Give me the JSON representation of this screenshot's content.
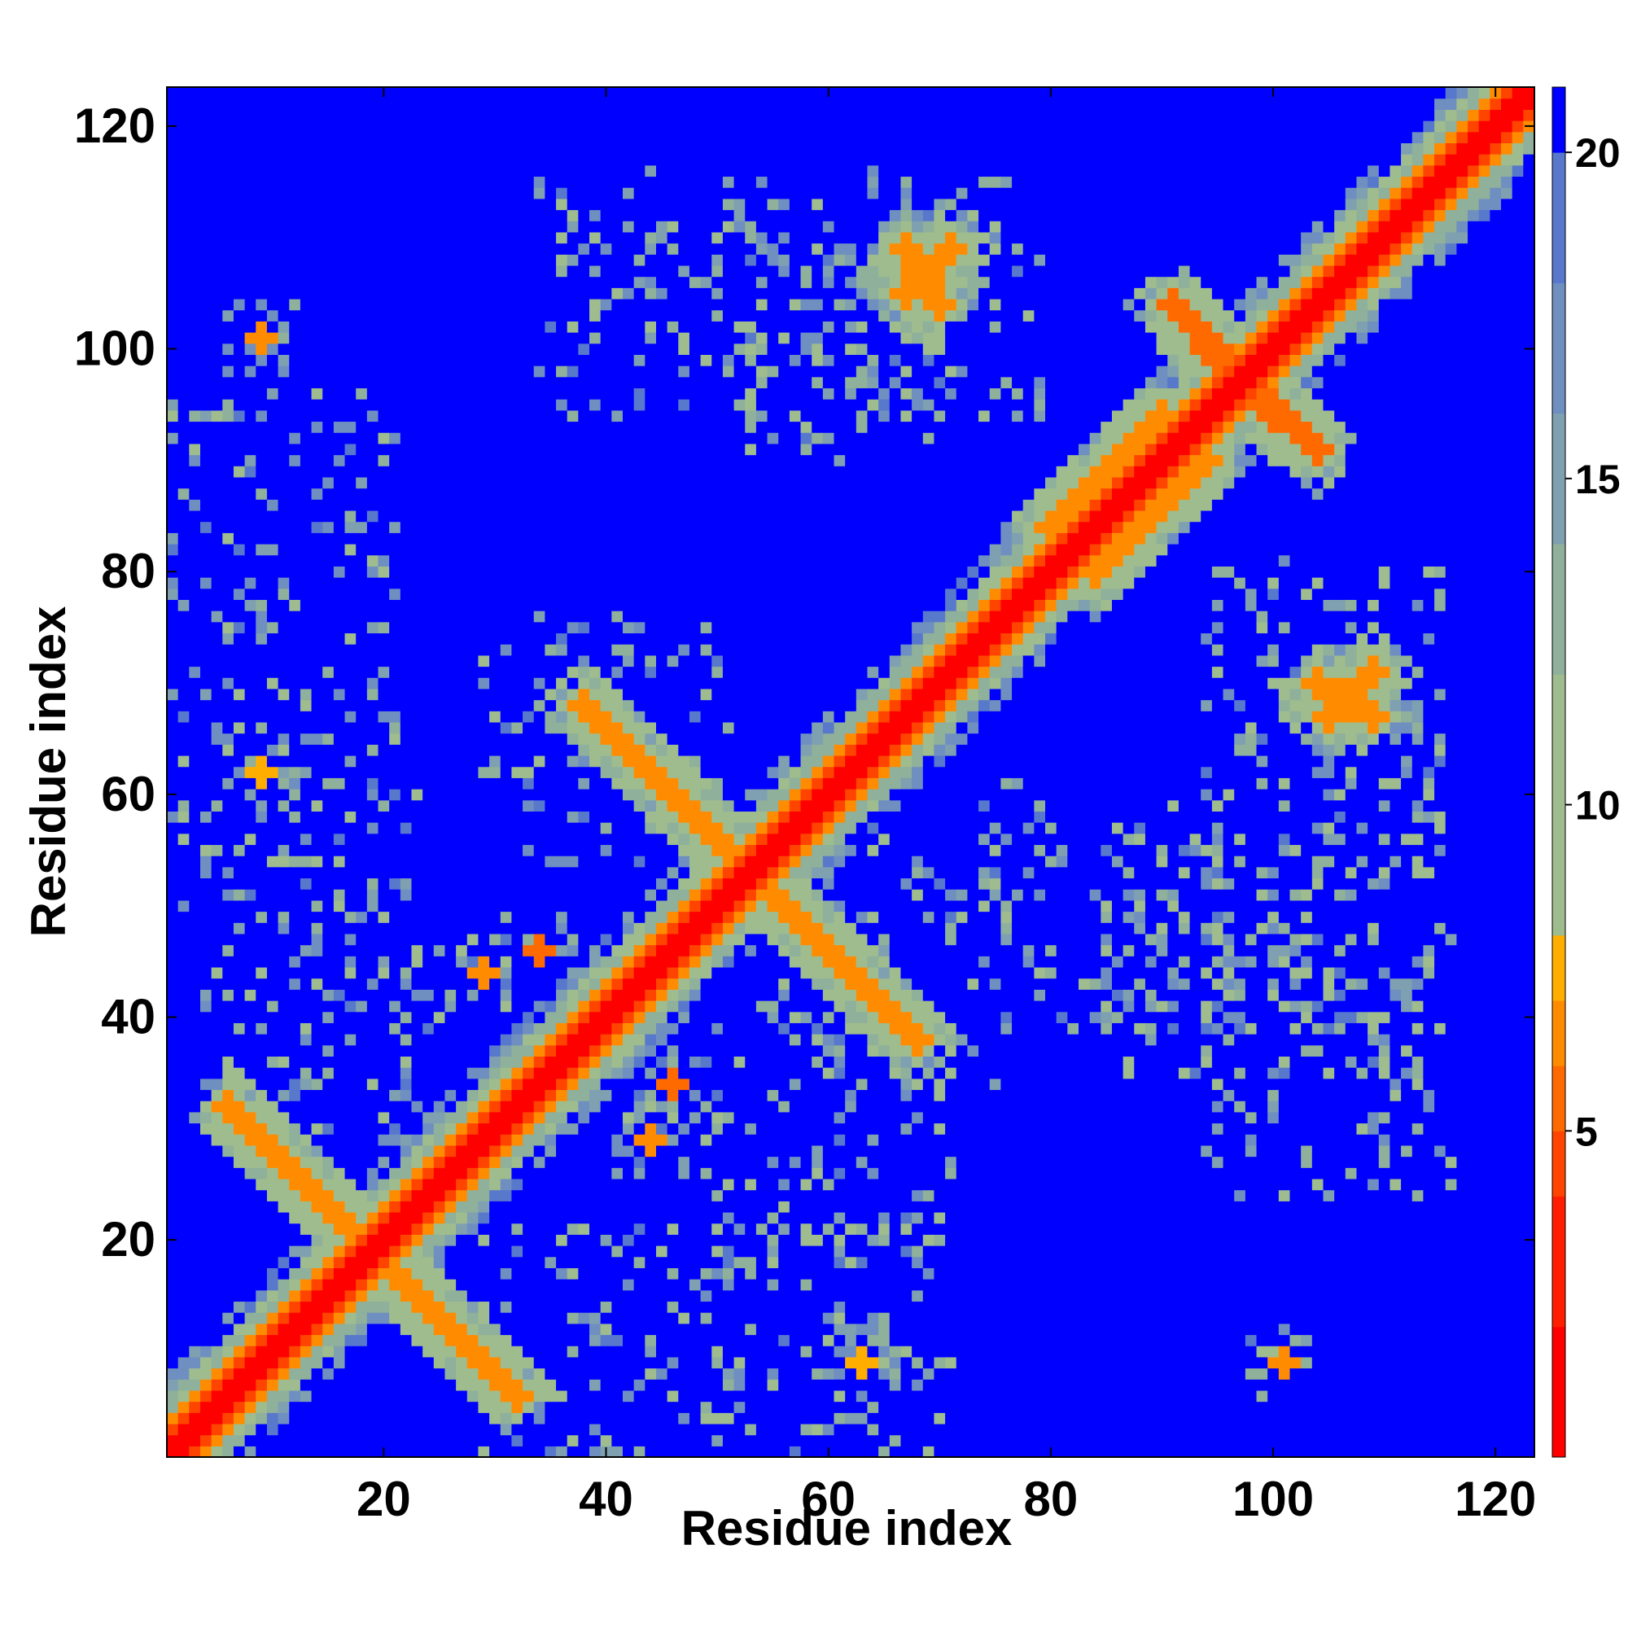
{
  "chart_data": {
    "type": "heatmap",
    "title": "",
    "xlabel": "Residue index",
    "ylabel": "Residue index",
    "n_residues": 123,
    "xlim": [
      1,
      123
    ],
    "ylim": [
      1,
      123
    ],
    "x_ticks": [
      20,
      40,
      60,
      80,
      100,
      120
    ],
    "y_ticks": [
      20,
      40,
      60,
      80,
      100,
      120
    ],
    "colorbar": {
      "ticks": [
        5,
        10,
        15,
        20
      ],
      "range": [
        0,
        21
      ],
      "levels": [
        {
          "max": 2,
          "color": "#ff0000"
        },
        {
          "max": 4,
          "color": "#ff1f00"
        },
        {
          "max": 5,
          "color": "#ff4400"
        },
        {
          "max": 6,
          "color": "#ff6a00"
        },
        {
          "max": 7,
          "color": "#ff8c00"
        },
        {
          "max": 8,
          "color": "#ffae00"
        },
        {
          "max": 10,
          "color": "#9fbc8f"
        },
        {
          "max": 12,
          "color": "#9fbc8f"
        },
        {
          "max": 14,
          "color": "#8fb09a"
        },
        {
          "max": 16,
          "color": "#7fa0b0"
        },
        {
          "max": 18,
          "color": "#6f8fc0"
        },
        {
          "max": 20,
          "color": "#5878cc"
        },
        {
          "max": 21,
          "color": "#0000ff"
        }
      ]
    },
    "colors": {
      "far": "#0000ff",
      "contact": "#ff0000",
      "mid": "#ffa500",
      "gray": "#9fbc8f",
      "steel": "#6f8fc0"
    },
    "contact_segments": [
      {
        "type": "anti-parallel",
        "from": [
          7,
          31
        ],
        "to": [
          32,
          6
        ],
        "value": 7
      },
      {
        "type": "anti-parallel",
        "from": [
          38,
          68
        ],
        "to": [
          54,
          52
        ],
        "value": 7
      },
      {
        "type": "parallel",
        "from": [
          84,
          80
        ],
        "to": [
          94,
          90
        ],
        "value": 7
      },
      {
        "type": "anti-parallel",
        "from": [
          92,
          103
        ],
        "to": [
          95,
          99
        ],
        "value": 6
      },
      {
        "type": "anti-parallel",
        "from": [
          100,
          95
        ],
        "to": [
          104,
          91
        ],
        "value": 6
      },
      {
        "type": "anti-parallel",
        "from": [
          71,
          109
        ],
        "to": [
          67,
          105
        ],
        "value": 7
      },
      {
        "type": "anti-parallel",
        "from": [
          104,
          70
        ],
        "to": [
          109,
          67
        ],
        "value": 7
      }
    ],
    "contact_spots": [
      {
        "center": [
          9,
          101
        ],
        "value": 7
      },
      {
        "center": [
          101,
          9
        ],
        "value": 7
      },
      {
        "center": [
          63,
          9
        ],
        "value": 8
      },
      {
        "center": [
          9,
          62
        ],
        "value": 8
      },
      {
        "center": [
          46,
          34
        ],
        "value": 6
      },
      {
        "center": [
          34,
          46
        ],
        "value": 6
      },
      {
        "center": [
          44,
          29
        ],
        "value": 7
      },
      {
        "center": [
          29,
          44
        ],
        "value": 7
      }
    ]
  }
}
